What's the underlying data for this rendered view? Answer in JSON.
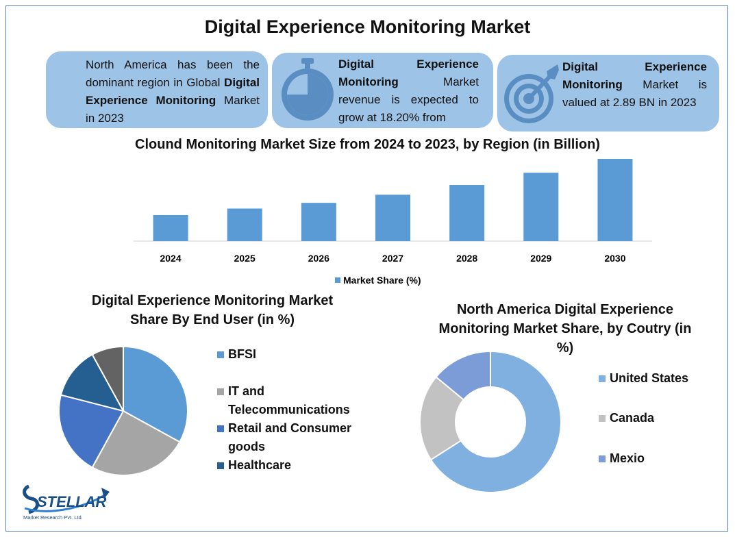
{
  "title": "Digital Experience Monitoring Market",
  "cards": [
    {
      "pre": "North America has been the dominant region in Global ",
      "bold": "Digital Experience Monitoring",
      "post": " Market in 2023"
    },
    {
      "pre": "",
      "bold": "Digital Experience Monitoring",
      "post": " Market revenue is expected to grow at 18.20% from"
    },
    {
      "pre": "",
      "bold": "Digital Experience Monitoring",
      "post": " Market is valued at 2.89 BN in 2023"
    }
  ],
  "icons": [
    "stopwatch-icon",
    "target-icon"
  ],
  "colors": {
    "card_bg": "#9dc3e6",
    "bar": "#5b9bd5",
    "frame": "#4d7fb3"
  },
  "chart_data": [
    {
      "type": "bar",
      "title": "Clound Monitoring Market Size from 2024 to 2023, by Region (in Billion)",
      "categories": [
        "2024",
        "2025",
        "2026",
        "2027",
        "2028",
        "2029",
        "2030"
      ],
      "series": [
        {
          "name": "Market Share (%)",
          "values": [
            3.2,
            4.0,
            4.7,
            5.7,
            6.9,
            8.4,
            10.1
          ]
        }
      ],
      "legend": "bottom",
      "grid": false
    },
    {
      "type": "pie",
      "title": "Digital Experience Monitoring Market Share By End User (in %)",
      "categories": [
        "BFSI",
        "IT and Telecommunications",
        "Retail and Consumer goods",
        "Healthcare",
        ""
      ],
      "values": [
        33,
        25,
        21,
        13,
        8
      ],
      "colors": [
        "#5b9bd5",
        "#a5a5a5",
        "#4472c4",
        "#255e91",
        "#636363"
      ],
      "legend": "right"
    },
    {
      "type": "pie",
      "subtype": "donut",
      "title": "North America Digital Experience Monitoring Market Share, by Coutry (in %)",
      "categories": [
        "United States",
        "Canada",
        "Mexio"
      ],
      "values": [
        66,
        20,
        14
      ],
      "colors": [
        "#7fb0e0",
        "#c2c2c2",
        "#7b9cd6"
      ],
      "legend": "right"
    }
  ],
  "logo": {
    "name": "STELLAR",
    "tagline": "Market Research Pvt. Ltd."
  }
}
